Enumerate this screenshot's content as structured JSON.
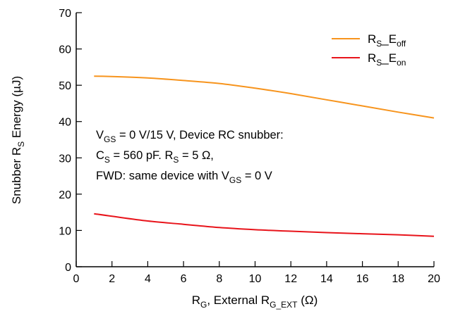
{
  "chart_data": {
    "type": "line",
    "xlabel": {
      "base": "R",
      "base_sub": "G",
      "mid": ", External R",
      "mid_sub": "G_EXT",
      "tail": " (Ω)"
    },
    "ylabel": {
      "base": "Snubber R",
      "base_sub": "S",
      "tail": " Energy (µJ)"
    },
    "xlim": [
      0,
      20
    ],
    "ylim": [
      0,
      70
    ],
    "xticks": [
      0,
      2,
      4,
      6,
      8,
      10,
      12,
      14,
      16,
      18,
      20
    ],
    "yticks": [
      0,
      10,
      20,
      30,
      40,
      50,
      60,
      70
    ],
    "grid": false,
    "legend_position": "top-right",
    "series": [
      {
        "name": {
          "base": "R",
          "sub1": "S",
          "mid": "_E",
          "sub2": "off"
        },
        "color": "#f7941d",
        "x": [
          1,
          2,
          4,
          6,
          8,
          10,
          12,
          14,
          16,
          18,
          20
        ],
        "y": [
          52.5,
          52.4,
          52.0,
          51.3,
          50.5,
          49.2,
          47.7,
          46.0,
          44.3,
          42.6,
          41.0
        ]
      },
      {
        "name": {
          "base": "R",
          "sub1": "S",
          "mid": "_E",
          "sub2": "on"
        },
        "color": "#e8141b",
        "x": [
          1,
          2,
          4,
          6,
          8,
          10,
          12,
          14,
          16,
          18,
          20
        ],
        "y": [
          14.6,
          13.9,
          12.6,
          11.7,
          10.8,
          10.2,
          9.8,
          9.4,
          9.1,
          8.8,
          8.4
        ]
      }
    ],
    "annotation": {
      "line1": {
        "a": "V",
        "a_sub": "GS",
        "b": " = 0 V/15 V, Device RC snubber:"
      },
      "line2": {
        "a": "C",
        "a_sub": "S",
        "b": " = 560 pF. R",
        "b_sub": "S",
        "c": " = 5 Ω,"
      },
      "line3": {
        "a": "FWD: same device with V",
        "a_sub": "GS",
        "b": " = 0 V"
      }
    }
  }
}
